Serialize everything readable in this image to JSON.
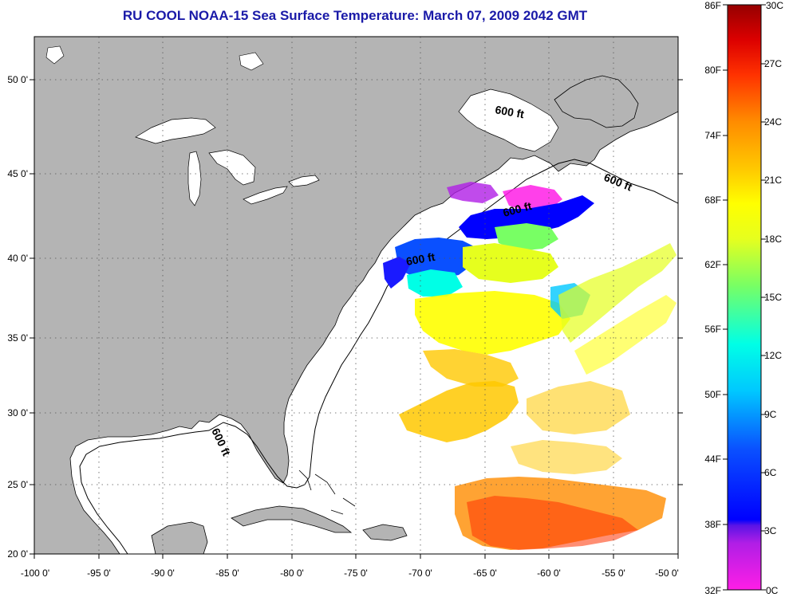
{
  "title": "RU COOL  NOAA-15  Sea Surface Temperature:  March 07, 2009 2042 GMT",
  "map": {
    "lon_ticks": [
      "-100 0'",
      "-95 0'",
      "-90 0'",
      "-85 0'",
      "-80 0'",
      "-75 0'",
      "-70 0'",
      "-65 0'",
      "-60 0'",
      "-55 0'",
      "-50 0'"
    ],
    "lat_ticks": [
      "50 0'",
      "45 0'",
      "40 0'",
      "35 0'",
      "30 0'",
      "25 0'",
      "20 0'"
    ],
    "contour_label": "600 ft",
    "land_color": "#b4b4b4",
    "ocean_color": "#ffffff"
  },
  "colorbar": {
    "f_labels": [
      "86F",
      "80F",
      "74F",
      "68F",
      "62F",
      "56F",
      "50F",
      "44F",
      "38F",
      "32F"
    ],
    "c_labels": [
      "30C",
      "27C",
      "24C",
      "21C",
      "18C",
      "15C",
      "12C",
      "9C",
      "6C",
      "3C",
      "0C"
    ]
  }
}
